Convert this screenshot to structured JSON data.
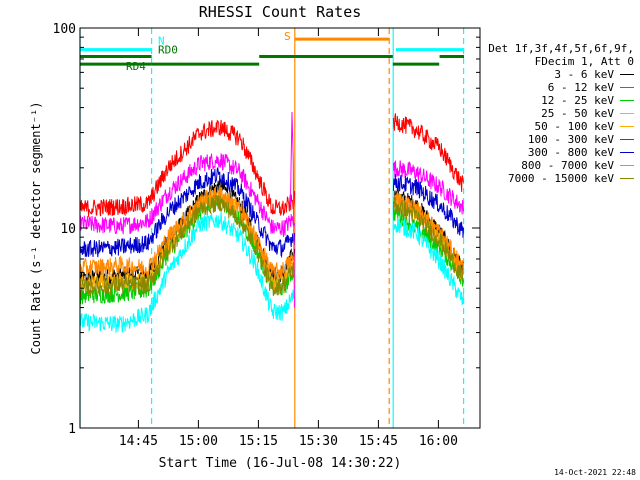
{
  "chart_data": {
    "type": "line",
    "title": "RHESSI Count Rates",
    "xlabel": "Start Time (16-Jul-08 14:30:22)",
    "ylabel": "Count Rate (s⁻¹ detector segment⁻¹)",
    "ylog": true,
    "ylim": [
      1,
      100
    ],
    "xlim_minutes": [
      0,
      100
    ],
    "x_unit": "minutes after 14:30:22",
    "x_ticks": [
      {
        "label": "14:45",
        "min": 14.6
      },
      {
        "label": "15:00",
        "min": 29.6
      },
      {
        "label": "15:15",
        "min": 44.6
      },
      {
        "label": "15:30",
        "min": 59.6
      },
      {
        "label": "15:45",
        "min": 74.6
      },
      {
        "label": "16:00",
        "min": 89.6
      }
    ],
    "y_ticks": [
      "1",
      "10",
      "100"
    ],
    "data_gap": [
      53.7,
      78.3
    ],
    "series": [
      {
        "name": "3 - 6 keV",
        "color": "#000000",
        "points": [
          [
            0,
            5.5
          ],
          [
            10,
            5.8
          ],
          [
            17,
            5.8
          ],
          [
            22,
            8.5
          ],
          [
            30,
            14
          ],
          [
            35,
            16.5
          ],
          [
            40,
            13
          ],
          [
            44,
            9
          ],
          [
            48,
            5.7
          ],
          [
            51,
            6.0
          ],
          [
            53,
            7.2
          ],
          [
            79,
            14.5
          ],
          [
            84,
            13
          ],
          [
            90,
            9.5
          ],
          [
            96,
            6.0
          ]
        ]
      },
      {
        "name": "6 - 12 keV",
        "color": "#ff00ff",
        "points": [
          [
            0,
            10.5
          ],
          [
            10,
            10.2
          ],
          [
            17,
            10.8
          ],
          [
            22,
            15
          ],
          [
            30,
            21
          ],
          [
            35,
            22
          ],
          [
            40,
            19
          ],
          [
            44,
            14
          ],
          [
            48,
            10
          ],
          [
            51,
            10
          ],
          [
            53,
            11
          ],
          [
            79,
            20
          ],
          [
            84,
            19
          ],
          [
            90,
            16
          ],
          [
            96,
            12.5
          ]
        ]
      },
      {
        "name": "12 - 25 keV",
        "color": "#00cc00",
        "points": [
          [
            0,
            4.6
          ],
          [
            10,
            4.7
          ],
          [
            17,
            4.9
          ],
          [
            22,
            7.5
          ],
          [
            30,
            12
          ],
          [
            35,
            14
          ],
          [
            40,
            11
          ],
          [
            44,
            8
          ],
          [
            48,
            5
          ],
          [
            51,
            5
          ],
          [
            53,
            6
          ],
          [
            79,
            12
          ],
          [
            84,
            10
          ],
          [
            90,
            8
          ],
          [
            96,
            5.5
          ]
        ]
      },
      {
        "name": "25 - 50 keV",
        "color": "#00ffff",
        "points": [
          [
            0,
            3.4
          ],
          [
            10,
            3.3
          ],
          [
            17,
            3.7
          ],
          [
            22,
            6
          ],
          [
            30,
            10.5
          ],
          [
            35,
            11
          ],
          [
            40,
            9
          ],
          [
            44,
            6.5
          ],
          [
            48,
            3.8
          ],
          [
            51,
            3.8
          ],
          [
            53,
            4.5
          ],
          [
            79,
            10.5
          ],
          [
            84,
            9.5
          ],
          [
            90,
            6.8
          ],
          [
            96,
            4.2
          ]
        ]
      },
      {
        "name": "50 - 100 keV",
        "color": "#ffaa00",
        "points": [
          [
            0,
            5.2
          ],
          [
            10,
            5.4
          ],
          [
            17,
            5.4
          ],
          [
            22,
            8
          ],
          [
            30,
            13
          ],
          [
            35,
            14.5
          ],
          [
            40,
            12
          ],
          [
            44,
            8.5
          ],
          [
            48,
            5.3
          ],
          [
            51,
            5.5
          ],
          [
            53,
            6.5
          ],
          [
            79,
            14
          ],
          [
            84,
            12
          ],
          [
            90,
            9
          ],
          [
            96,
            5.7
          ]
        ]
      },
      {
        "name": "100 - 300 keV",
        "color": "#ff0000",
        "points": [
          [
            0,
            12.5
          ],
          [
            10,
            12.8
          ],
          [
            17,
            13.2
          ],
          [
            22,
            20
          ],
          [
            30,
            30
          ],
          [
            35,
            32
          ],
          [
            40,
            28
          ],
          [
            44,
            19
          ],
          [
            48,
            12.5
          ],
          [
            51,
            12.5
          ],
          [
            53,
            13.5
          ],
          [
            79,
            34
          ],
          [
            84,
            31
          ],
          [
            90,
            25
          ],
          [
            96,
            16
          ]
        ]
      },
      {
        "name": "300 - 800 keV",
        "color": "#0000cc",
        "points": [
          [
            0,
            7.8
          ],
          [
            10,
            8.0
          ],
          [
            17,
            8.4
          ],
          [
            22,
            12
          ],
          [
            30,
            17
          ],
          [
            35,
            18.5
          ],
          [
            40,
            15.5
          ],
          [
            44,
            11
          ],
          [
            48,
            8
          ],
          [
            51,
            8
          ],
          [
            53,
            9
          ],
          [
            79,
            17
          ],
          [
            84,
            16
          ],
          [
            90,
            13
          ],
          [
            96,
            9.5
          ]
        ]
      },
      {
        "name": "800 - 7000 keV",
        "color": "#ff8800",
        "points": [
          [
            0,
            6.3
          ],
          [
            10,
            6.5
          ],
          [
            17,
            6.3
          ],
          [
            22,
            9
          ],
          [
            30,
            13.5
          ],
          [
            35,
            15
          ],
          [
            40,
            12.5
          ],
          [
            44,
            9
          ],
          [
            48,
            6
          ],
          [
            51,
            6.2
          ],
          [
            53,
            7
          ],
          [
            79,
            14
          ],
          [
            84,
            12.5
          ],
          [
            90,
            9.5
          ],
          [
            96,
            6.2
          ]
        ]
      },
      {
        "name": "7000 - 15000 keV",
        "color": "#888800",
        "points": [
          [
            0,
            5.0
          ],
          [
            10,
            5.2
          ],
          [
            17,
            5.2
          ],
          [
            22,
            7.8
          ],
          [
            30,
            12.5
          ],
          [
            35,
            13.5
          ],
          [
            40,
            11
          ],
          [
            44,
            8
          ],
          [
            48,
            5.0
          ],
          [
            51,
            5.2
          ],
          [
            53,
            6.2
          ],
          [
            79,
            13
          ],
          [
            84,
            11.5
          ],
          [
            90,
            8.7
          ],
          [
            96,
            5.5
          ]
        ]
      }
    ],
    "flag_bars": [
      {
        "label": "N",
        "color": "#00ffff",
        "level": 78,
        "spans": [
          [
            0,
            17.9
          ],
          [
            79,
            96
          ]
        ]
      },
      {
        "label": "RD0",
        "color": "#007700",
        "level": 72,
        "spans": [
          [
            0,
            17.9
          ],
          [
            44.8,
            78.2
          ],
          [
            89.9,
            96
          ]
        ]
      },
      {
        "label": "RD4",
        "color": "#007700",
        "level": 66,
        "spans": [
          [
            0,
            17.9
          ],
          [
            17.9,
            44.8
          ],
          [
            78.2,
            89.8
          ]
        ]
      },
      {
        "label": "S",
        "color": "#ff8800",
        "level": 88,
        "spans": [
          [
            53.7,
            77.3
          ]
        ]
      }
    ],
    "vertical_markers": [
      {
        "color": "#00ffff",
        "style": "solid",
        "min": 0
      },
      {
        "color": "#00ffff",
        "style": "dashed",
        "min": 17.9
      },
      {
        "color": "#ff8800",
        "style": "solid",
        "min": 53.7
      },
      {
        "color": "#ff8800",
        "style": "dashed",
        "min": 77.3
      },
      {
        "color": "#00ffff",
        "style": "solid",
        "min": 78.3
      },
      {
        "color": "#00ffff",
        "style": "dashed",
        "min": 95.9
      }
    ],
    "legend": {
      "header": [
        "Det 1f,3f,4f,5f,6f,9f,",
        "FDecim 1, Att 0"
      ],
      "placement": "right"
    }
  },
  "timestamp": "14-Oct-2021 22:48"
}
